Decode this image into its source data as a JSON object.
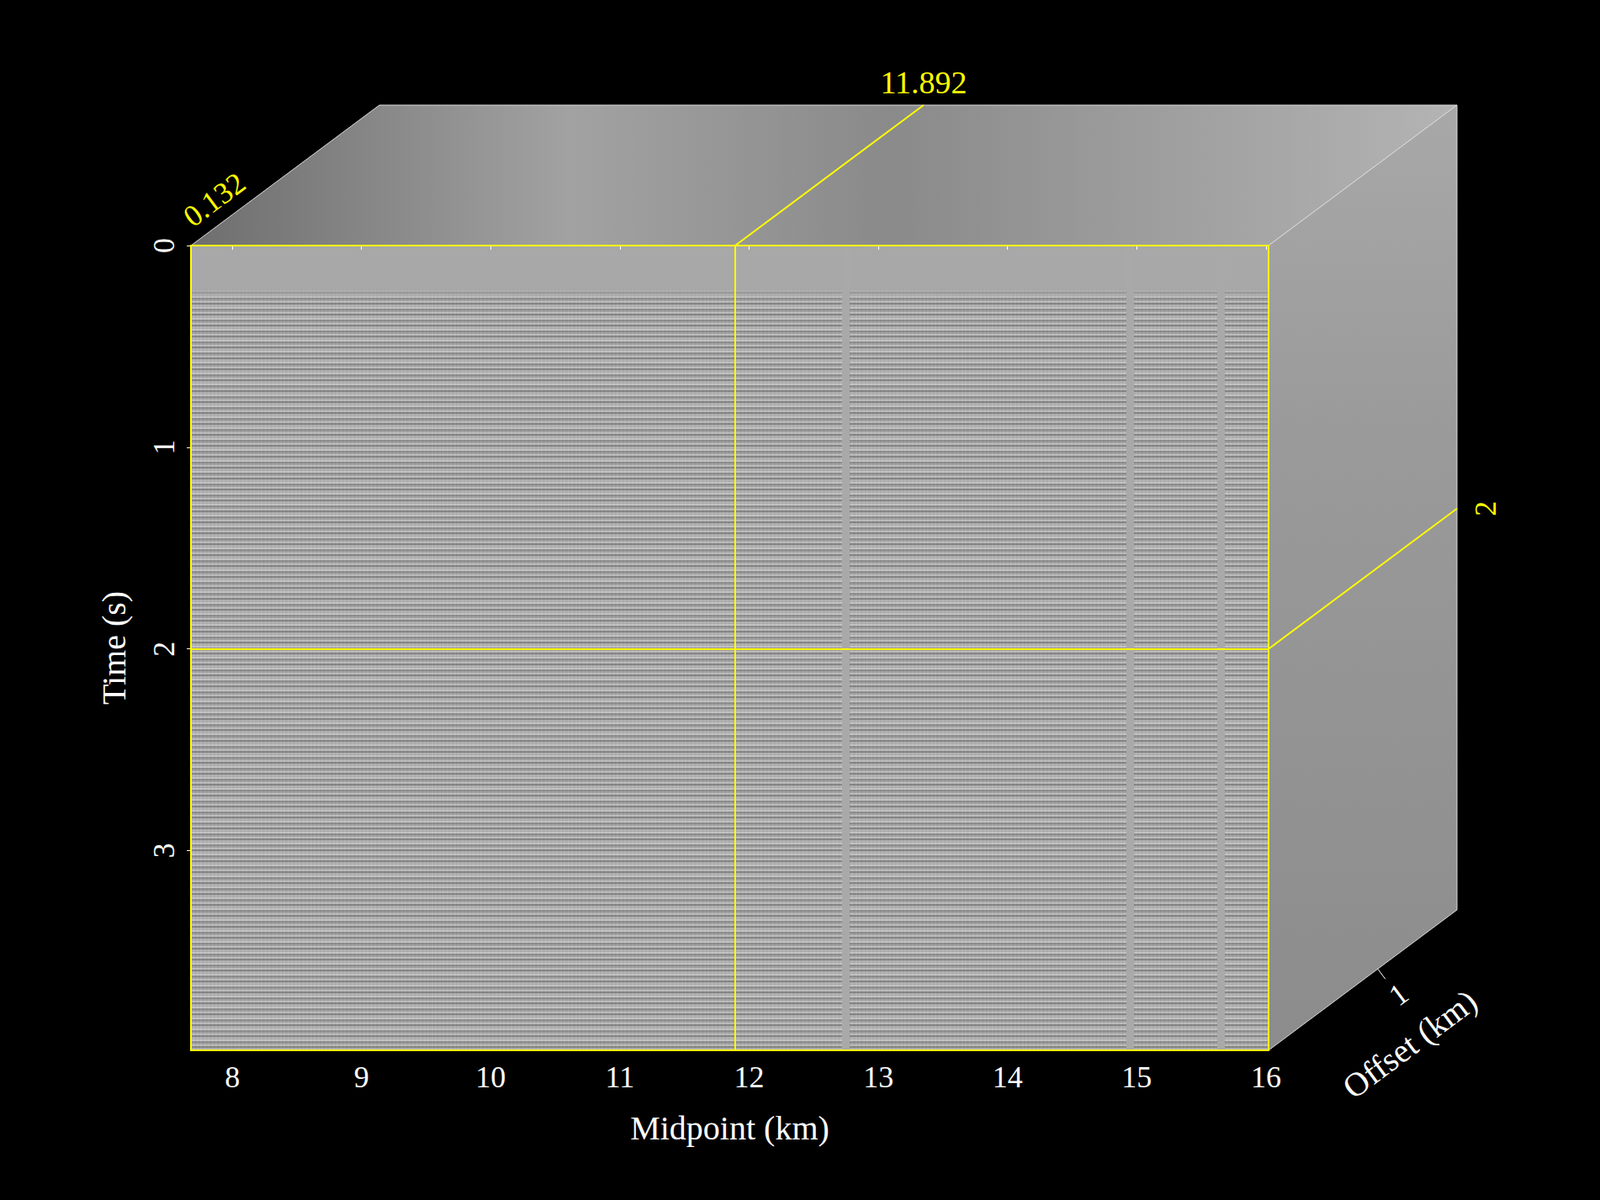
{
  "chart_data": {
    "type": "cube",
    "x_label": "Midpoint (km)",
    "y_label": "Time (s)",
    "z_label": "Offset (km)",
    "xlim": [
      7.68,
      16.02
    ],
    "xticks": [
      8,
      9,
      10,
      11,
      12,
      13,
      14,
      15,
      16
    ],
    "ylim": [
      0,
      3.99
    ],
    "yticks": [
      0,
      1,
      2,
      3
    ],
    "zlim": [
      0.132,
      1.63
    ],
    "zticks": [
      1
    ],
    "slices": {
      "x": 11.892,
      "y": 2,
      "z": 0.132
    },
    "dead_traces": [
      12.75,
      14.95,
      15.65
    ],
    "color": "#ffff00"
  }
}
